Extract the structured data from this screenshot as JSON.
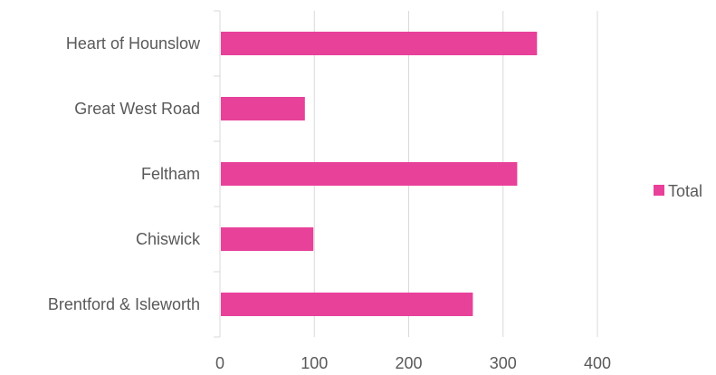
{
  "chart_data": {
    "type": "bar",
    "orientation": "horizontal",
    "categories": [
      "Heart of Hounslow",
      "Great West Road",
      "Feltham",
      "Chiswick",
      "Brentford & Isleworth"
    ],
    "series": [
      {
        "name": "Total",
        "values": [
          336,
          90,
          315,
          99,
          268
        ],
        "color": "#E8419A"
      }
    ],
    "xlim": [
      0,
      400
    ],
    "xticks": [
      0,
      100,
      200,
      300,
      400
    ],
    "xtick_labels": [
      "0",
      "100",
      "200",
      "300",
      "400"
    ],
    "grid": "vertical",
    "legend_position": "right",
    "title": "",
    "xlabel": "",
    "ylabel": ""
  }
}
